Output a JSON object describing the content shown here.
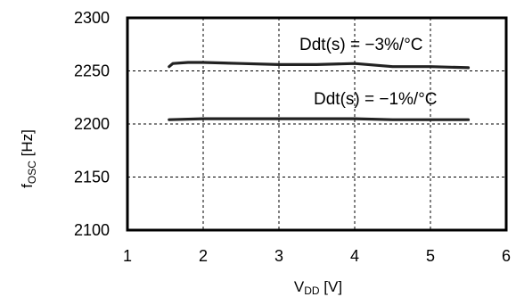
{
  "chart_data": {
    "type": "line",
    "x_ticks": [
      1,
      2,
      3,
      4,
      5,
      6
    ],
    "y_ticks": [
      2100,
      2150,
      2200,
      2250,
      2300
    ],
    "xlim": [
      1,
      6
    ],
    "ylim": [
      2100,
      2300
    ],
    "grid": true,
    "xlabel": {
      "main": "V",
      "sub": "DD",
      "unit": " [V]"
    },
    "ylabel": {
      "main": "f",
      "sub": "OSC",
      "unit": " [Hz]"
    },
    "annotations": [
      "Ddt(s) = −3%/°C",
      "Ddt(s) = −1%/°C"
    ],
    "series": [
      {
        "x": [
          1.55,
          1.6,
          1.8,
          2.0,
          2.5,
          3.0,
          3.5,
          4.0,
          4.5,
          5.0,
          5.5
        ],
        "y": [
          2254,
          2257,
          2258,
          2258,
          2257,
          2256,
          2256,
          2257,
          2254,
          2254,
          2253
        ]
      },
      {
        "x": [
          1.55,
          2.0,
          2.5,
          3.0,
          3.5,
          4.0,
          4.5,
          5.0,
          5.5
        ],
        "y": [
          2204,
          2205,
          2205,
          2205,
          2205,
          2205,
          2204,
          2204,
          2204
        ]
      }
    ]
  }
}
